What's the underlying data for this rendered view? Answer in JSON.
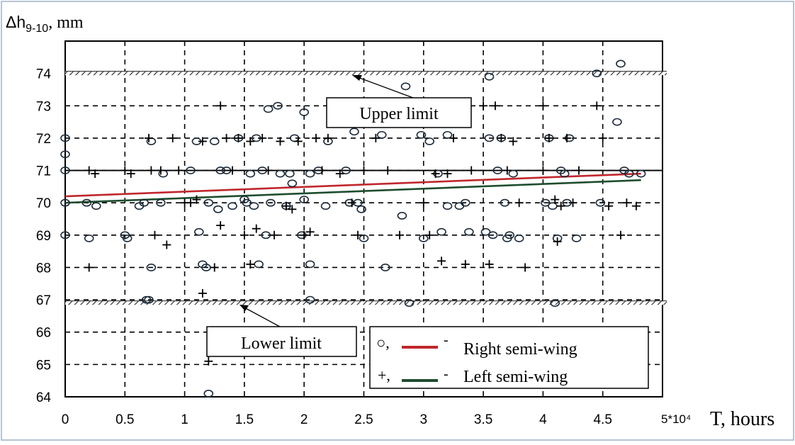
{
  "chart_data": {
    "type": "scatter",
    "ylabel_symbol": "Δh",
    "ylabel_subscript": "9-10",
    "ylabel_unit": ", mm",
    "xlabel_multiplier": "5*10⁴",
    "xlabel": "T, hours",
    "xlim": [
      0,
      5
    ],
    "ylim": [
      64,
      75
    ],
    "xticks": [
      0,
      0.5,
      1,
      1.5,
      2,
      2.5,
      3,
      3.5,
      4,
      4.5
    ],
    "xtick_labels": [
      "0",
      "0.5",
      "1",
      "1.5",
      "2",
      "2.5",
      "3",
      "3.5",
      "4",
      "4.5"
    ],
    "yticks": [
      64,
      65,
      66,
      67,
      68,
      69,
      70,
      71,
      72,
      73,
      74
    ],
    "ytick_labels": [
      "64",
      "65",
      "66",
      "67",
      "68",
      "69",
      "70",
      "71",
      "72",
      "73",
      "74"
    ],
    "grid": true,
    "limits": [
      {
        "name": "upper",
        "label": "Upper limit",
        "y": 74
      },
      {
        "name": "lower",
        "label": "Lower limit",
        "y": 66.9
      }
    ],
    "reference_line": {
      "y": 71
    },
    "legend": {
      "position": "bottom-right",
      "entries": [
        {
          "marker": "circle",
          "marker_text": "○,",
          "dash": "-",
          "label": "Right semi-wing",
          "color": "#c0272d"
        },
        {
          "marker": "plus",
          "marker_text": "+,",
          "dash": "-",
          "label": "Left semi-wing",
          "color": "#1f4d2e"
        }
      ]
    },
    "series": [
      {
        "name": "Right semi-wing",
        "marker": "circle",
        "trend": {
          "x": [
            0,
            4.82
          ],
          "y": [
            70.2,
            70.9
          ]
        },
        "points": [
          [
            0,
            72
          ],
          [
            0,
            71.5
          ],
          [
            0,
            71
          ],
          [
            0,
            70
          ],
          [
            0,
            69
          ],
          [
            0.18,
            70
          ],
          [
            0.2,
            68.9
          ],
          [
            0.26,
            69.9
          ],
          [
            0.5,
            69
          ],
          [
            0.52,
            68.9
          ],
          [
            0.62,
            69.9
          ],
          [
            0.66,
            70
          ],
          [
            0.68,
            67
          ],
          [
            0.7,
            67
          ],
          [
            0.72,
            71.9
          ],
          [
            0.72,
            68
          ],
          [
            0.8,
            70
          ],
          [
            0.82,
            70.9
          ],
          [
            1.05,
            71
          ],
          [
            1.1,
            71.9
          ],
          [
            1.12,
            69.1
          ],
          [
            1.15,
            68.1
          ],
          [
            1.18,
            68
          ],
          [
            1.2,
            70
          ],
          [
            1.2,
            64.1
          ],
          [
            1.25,
            71.9
          ],
          [
            1.28,
            69.8
          ],
          [
            1.3,
            71
          ],
          [
            1.35,
            71
          ],
          [
            1.4,
            69.9
          ],
          [
            1.45,
            72
          ],
          [
            1.5,
            70.1
          ],
          [
            1.52,
            70
          ],
          [
            1.55,
            70.9
          ],
          [
            1.58,
            69.9
          ],
          [
            1.6,
            72
          ],
          [
            1.62,
            68.1
          ],
          [
            1.65,
            71
          ],
          [
            1.68,
            69
          ],
          [
            1.7,
            72.9
          ],
          [
            1.72,
            70
          ],
          [
            1.78,
            73
          ],
          [
            1.8,
            70.9
          ],
          [
            1.85,
            69.9
          ],
          [
            1.88,
            70.9
          ],
          [
            1.9,
            70.6
          ],
          [
            1.92,
            72
          ],
          [
            1.98,
            69
          ],
          [
            2,
            72.8
          ],
          [
            2,
            70.1
          ],
          [
            2.05,
            70.9
          ],
          [
            2.05,
            68.1
          ],
          [
            2.05,
            67
          ],
          [
            2.12,
            71
          ],
          [
            2.18,
            69.9
          ],
          [
            2.2,
            71.9
          ],
          [
            2.35,
            71
          ],
          [
            2.38,
            70
          ],
          [
            2.42,
            72.2
          ],
          [
            2.45,
            70
          ],
          [
            2.48,
            69.8
          ],
          [
            2.5,
            68.9
          ],
          [
            2.65,
            72.1
          ],
          [
            2.68,
            68
          ],
          [
            2.82,
            69.6
          ],
          [
            2.85,
            73.6
          ],
          [
            2.88,
            66.9
          ],
          [
            2.98,
            72.1
          ],
          [
            3,
            68.9
          ],
          [
            3.05,
            71.9
          ],
          [
            3.12,
            70.9
          ],
          [
            3.15,
            69.1
          ],
          [
            3.2,
            72.1
          ],
          [
            3.2,
            69.9
          ],
          [
            3.3,
            69.9
          ],
          [
            3.35,
            70
          ],
          [
            3.38,
            69.1
          ],
          [
            3.52,
            69.1
          ],
          [
            3.55,
            73.9
          ],
          [
            3.55,
            72
          ],
          [
            3.58,
            69
          ],
          [
            3.62,
            71
          ],
          [
            3.65,
            72
          ],
          [
            3.68,
            70
          ],
          [
            3.7,
            68.9
          ],
          [
            3.72,
            69
          ],
          [
            3.75,
            70.9
          ],
          [
            3.8,
            68.9
          ],
          [
            4.02,
            70
          ],
          [
            4.05,
            72
          ],
          [
            4.08,
            69.9
          ],
          [
            4.1,
            66.9
          ],
          [
            4.12,
            68.9
          ],
          [
            4.15,
            71
          ],
          [
            4.18,
            70.9
          ],
          [
            4.2,
            70
          ],
          [
            4.22,
            72
          ],
          [
            4.28,
            68.9
          ],
          [
            4.45,
            74
          ],
          [
            4.48,
            70
          ],
          [
            4.62,
            72.5
          ],
          [
            4.65,
            74.3
          ],
          [
            4.68,
            71
          ],
          [
            4.72,
            70.9
          ],
          [
            4.82,
            70.9
          ]
        ]
      },
      {
        "name": "Left semi-wing",
        "marker": "plus",
        "trend": {
          "x": [
            0,
            4.82
          ],
          "y": [
            70,
            70.7
          ]
        },
        "points": [
          [
            0.2,
            71
          ],
          [
            0.2,
            68
          ],
          [
            0.25,
            70.9
          ],
          [
            0.5,
            71
          ],
          [
            0.55,
            70.9
          ],
          [
            0.7,
            72
          ],
          [
            0.72,
            71
          ],
          [
            0.75,
            69
          ],
          [
            0.8,
            71
          ],
          [
            0.85,
            68.7
          ],
          [
            0.9,
            72
          ],
          [
            0.95,
            71
          ],
          [
            1,
            70
          ],
          [
            1.05,
            70
          ],
          [
            1.1,
            70.1
          ],
          [
            1.15,
            71.9
          ],
          [
            1.15,
            67.2
          ],
          [
            1.2,
            65.1
          ],
          [
            1.25,
            68
          ],
          [
            1.3,
            69.3
          ],
          [
            1.3,
            73
          ],
          [
            1.35,
            72
          ],
          [
            1.4,
            71
          ],
          [
            1.45,
            72
          ],
          [
            1.5,
            69
          ],
          [
            1.55,
            71.9
          ],
          [
            1.55,
            68.1
          ],
          [
            1.6,
            69.2
          ],
          [
            1.65,
            72
          ],
          [
            1.7,
            71
          ],
          [
            1.75,
            69
          ],
          [
            1.8,
            71.9
          ],
          [
            1.85,
            69.9
          ],
          [
            1.9,
            69.8
          ],
          [
            1.95,
            71.9
          ],
          [
            2,
            69
          ],
          [
            2.05,
            69.1
          ],
          [
            2.1,
            72
          ],
          [
            2.15,
            71
          ],
          [
            2.2,
            72
          ],
          [
            2.3,
            70.9
          ],
          [
            2.4,
            70
          ],
          [
            2.45,
            69
          ],
          [
            2.5,
            71
          ],
          [
            2.6,
            72
          ],
          [
            2.7,
            71
          ],
          [
            2.8,
            69
          ],
          [
            3,
            70
          ],
          [
            3.05,
            69
          ],
          [
            3.1,
            70.9
          ],
          [
            3.15,
            68.2
          ],
          [
            3.2,
            70.9
          ],
          [
            3.25,
            72
          ],
          [
            3.35,
            68.1
          ],
          [
            3.4,
            71
          ],
          [
            3.5,
            73
          ],
          [
            3.55,
            68.1
          ],
          [
            3.6,
            73
          ],
          [
            3.65,
            72
          ],
          [
            3.7,
            71
          ],
          [
            3.75,
            71.9
          ],
          [
            3.8,
            70
          ],
          [
            3.85,
            68
          ],
          [
            4,
            71
          ],
          [
            4,
            73
          ],
          [
            4.05,
            72
          ],
          [
            4.1,
            70.1
          ],
          [
            4.12,
            68.8
          ],
          [
            4.15,
            69.9
          ],
          [
            4.2,
            72
          ],
          [
            4.25,
            70
          ],
          [
            4.3,
            71
          ],
          [
            4.45,
            73
          ],
          [
            4.5,
            72
          ],
          [
            4.55,
            69.9
          ],
          [
            4.65,
            69
          ],
          [
            4.7,
            70
          ],
          [
            4.78,
            69.9
          ]
        ]
      }
    ]
  }
}
